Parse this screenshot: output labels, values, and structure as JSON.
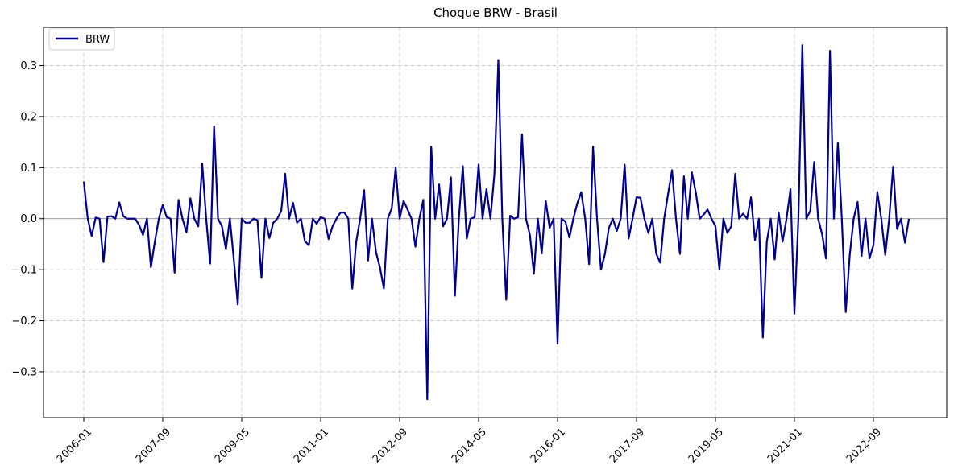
{
  "chart_data": {
    "type": "line",
    "title": "Choque BRW - Brasil",
    "xlabel": "",
    "ylabel": "",
    "x_tick_labels": [
      "2006-01",
      "2007-09",
      "2009-05",
      "2011-01",
      "2012-09",
      "2014-05",
      "2016-01",
      "2017-09",
      "2019-05",
      "2021-01",
      "2022-09"
    ],
    "y_tick_labels": [
      "−0.3",
      "−0.2",
      "−0.1",
      "0.0",
      "0.1",
      "0.2",
      "0.3"
    ],
    "y_ticks": [
      -0.3,
      -0.2,
      -0.1,
      0.0,
      0.1,
      0.2,
      0.3
    ],
    "ylim": [
      -0.39,
      0.375
    ],
    "x_start": "2006-01",
    "grid": true,
    "zero_line": true,
    "legend_position": "top-left",
    "series": [
      {
        "name": "BRW",
        "color": "#00008b",
        "values": [
          0.073,
          0.0,
          -0.034,
          0.002,
          0.0,
          -0.085,
          0.004,
          0.005,
          0.0,
          0.032,
          0.005,
          0.0,
          0.0,
          0.0,
          -0.012,
          -0.032,
          0.0,
          -0.095,
          -0.045,
          0.0,
          0.027,
          0.003,
          0.0,
          -0.106,
          0.037,
          0.0,
          -0.027,
          0.04,
          0.0,
          -0.015,
          0.108,
          0.0,
          -0.088,
          0.181,
          0.0,
          -0.015,
          -0.06,
          0.0,
          -0.08,
          -0.168,
          0.0,
          -0.008,
          -0.008,
          0.0,
          -0.003,
          -0.116,
          0.0,
          -0.038,
          -0.008,
          0.0,
          0.015,
          0.088,
          0.0,
          0.031,
          -0.008,
          0.0,
          -0.044,
          -0.052,
          0.0,
          -0.01,
          0.003,
          0.0,
          -0.04,
          -0.015,
          0.0,
          0.012,
          0.012,
          0.0,
          -0.137,
          -0.045,
          0.0,
          0.056,
          -0.082,
          0.0,
          -0.065,
          -0.095,
          -0.137,
          0.0,
          0.02,
          0.1,
          0.0,
          0.035,
          0.018,
          0.0,
          -0.055,
          0.0,
          0.037,
          -0.354,
          0.141,
          0.0,
          0.067,
          -0.015,
          0.0,
          0.081,
          -0.151,
          0.0,
          0.103,
          -0.039,
          0.0,
          0.003,
          0.106,
          0.0,
          0.058,
          0.0,
          0.087,
          0.311,
          0.0,
          -0.159,
          0.006,
          0.0,
          0.003,
          0.165,
          0.0,
          -0.032,
          -0.108,
          0.0,
          -0.068,
          0.035,
          -0.018,
          0.0,
          -0.245,
          0.0,
          -0.006,
          -0.037,
          0.0,
          0.03,
          0.052,
          0.0,
          -0.089,
          0.141,
          0.0,
          -0.1,
          -0.069,
          -0.018,
          0.0,
          -0.024,
          0.0,
          0.106,
          -0.039,
          0.0,
          0.042,
          0.041,
          0.0,
          -0.028,
          0.0,
          -0.069,
          -0.086,
          0.0,
          0.049,
          0.095,
          0.0,
          -0.069,
          0.083,
          0.0,
          0.091,
          0.052,
          0.0,
          0.008,
          0.018,
          0.0,
          -0.015,
          -0.1,
          0.0,
          -0.028,
          -0.015,
          0.088,
          0.0,
          0.01,
          0.0,
          0.042,
          -0.042,
          0.0,
          -0.233,
          -0.045,
          0.0,
          -0.08,
          0.012,
          -0.045,
          0.0,
          0.058,
          -0.186,
          0.0,
          0.34,
          0.0,
          0.015,
          0.111,
          0.0,
          -0.03,
          -0.078,
          0.329,
          0.0,
          0.149,
          0.0,
          -0.183,
          -0.072,
          0.0,
          0.033,
          -0.073,
          0.0,
          -0.078,
          -0.052,
          0.052,
          0.0,
          -0.071,
          0.0,
          0.102,
          -0.02,
          0.0,
          -0.047,
          0.0
        ]
      }
    ]
  }
}
